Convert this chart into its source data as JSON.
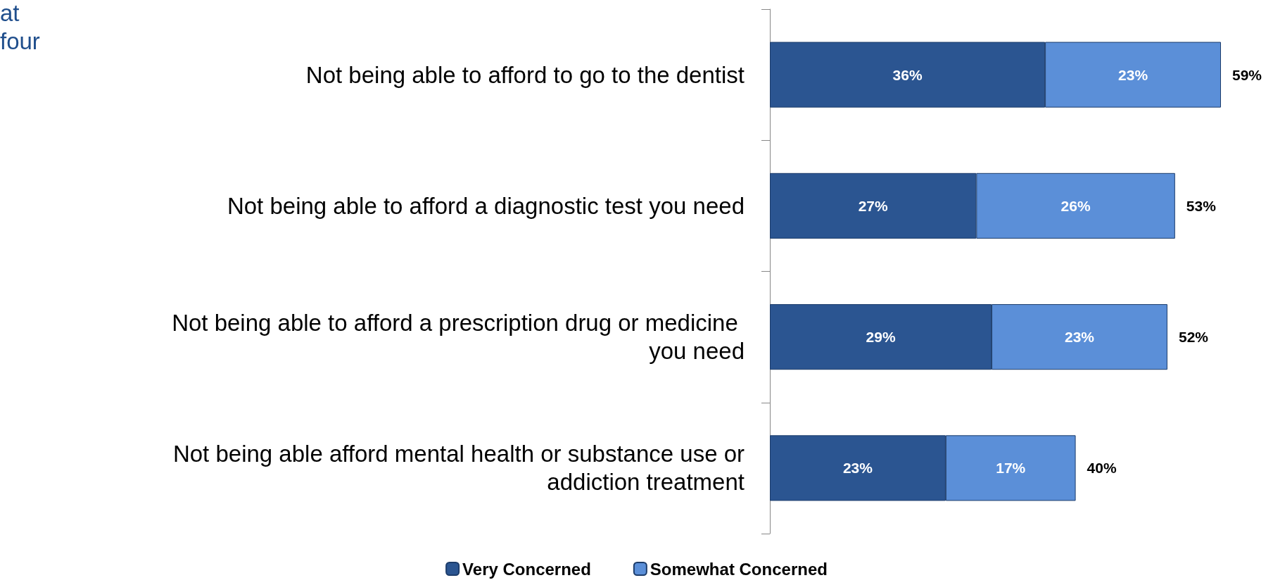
{
  "chart_data": {
    "type": "bar",
    "orientation": "horizontal",
    "stacked": true,
    "annotations": [
      "at",
      "four"
    ],
    "categories": [
      "Not being able to afford to go to the dentist",
      "Not being able to afford a diagnostic test you need",
      "Not being able to afford a prescription drug or medicine you need",
      "Not being able afford mental health or substance use or addiction treatment"
    ],
    "series": [
      {
        "name": "Very Concerned",
        "color": "#2b5591",
        "values": [
          36,
          27,
          29,
          23
        ],
        "value_labels": [
          "36%",
          "27%",
          "29%",
          "23%"
        ]
      },
      {
        "name": "Somewhat Concerned",
        "color": "#5b8fd8",
        "values": [
          23,
          26,
          23,
          17
        ],
        "value_labels": [
          "23%",
          "26%",
          "23%",
          "17%"
        ]
      }
    ],
    "totals": [
      "59%",
      "53%",
      "52%",
      "40%"
    ],
    "legend": "bottom"
  }
}
